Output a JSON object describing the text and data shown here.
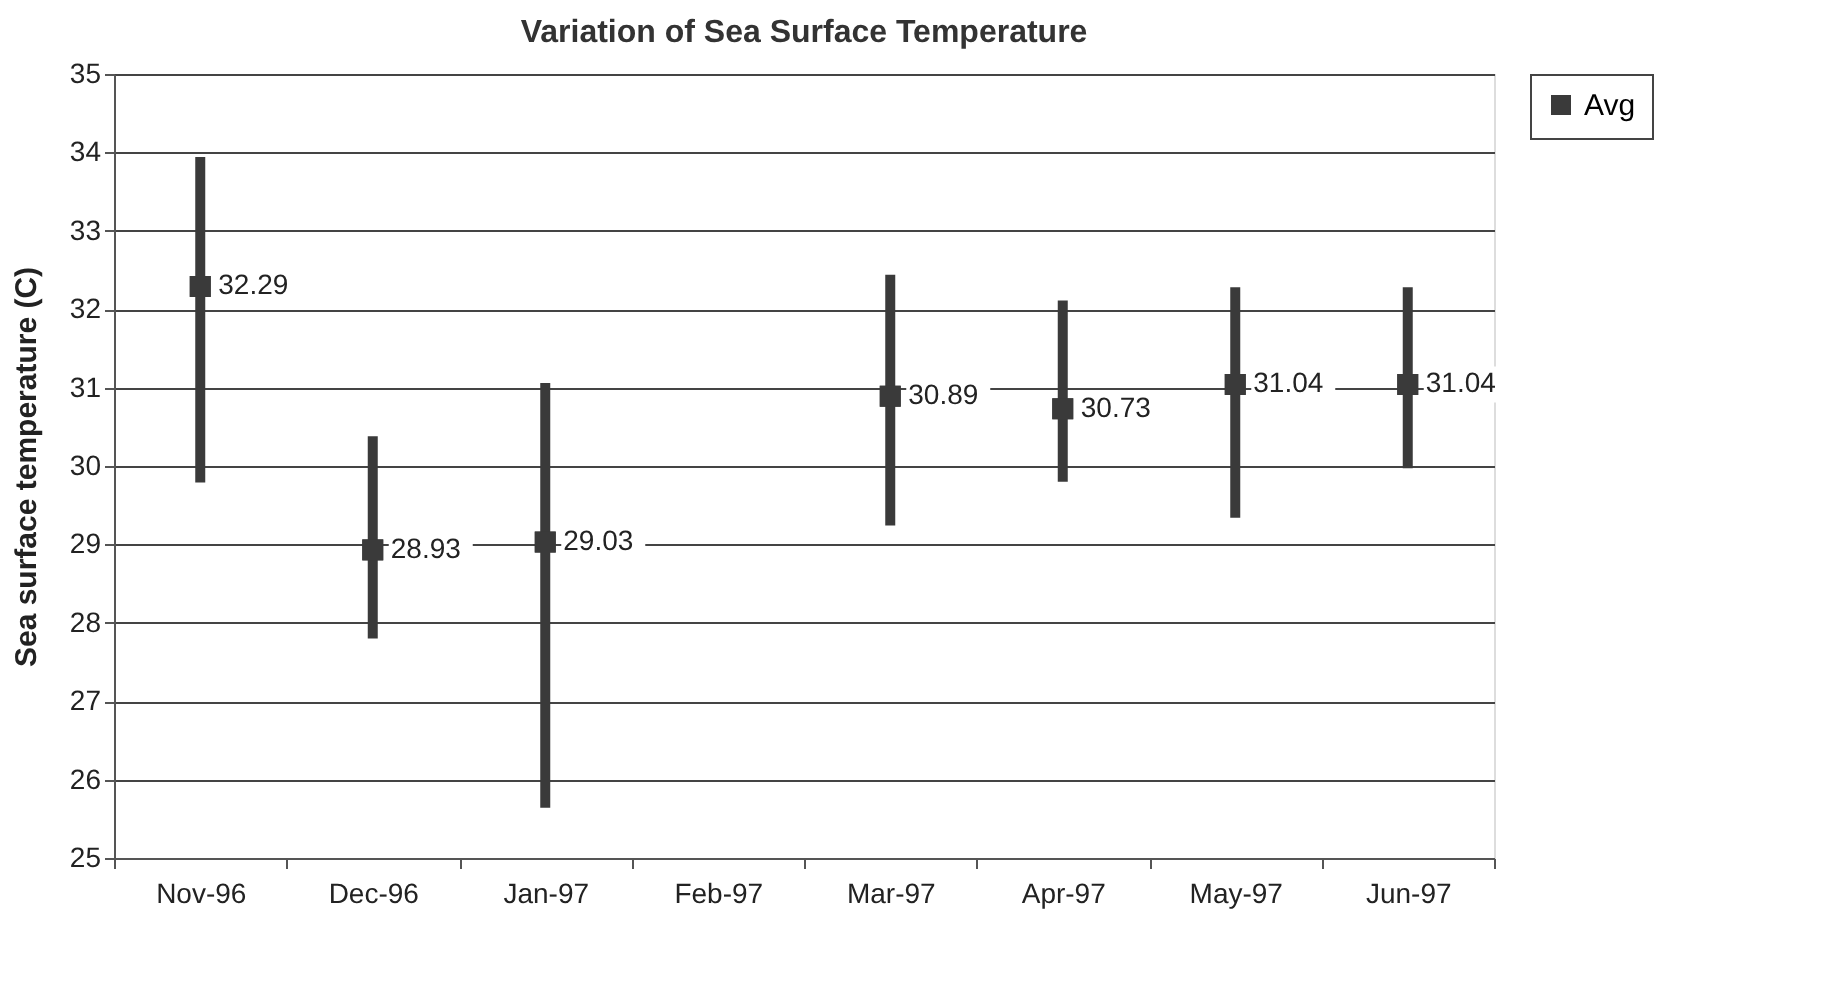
{
  "chart_data": {
    "type": "scatter",
    "title": "Variation of Sea Surface Temperature",
    "ylabel": "Sea surface temperature (C)",
    "categories": [
      "Nov-96",
      "Dec-96",
      "Jan-97",
      "Feb-97",
      "Mar-97",
      "Apr-97",
      "May-97",
      "Jun-97"
    ],
    "series": [
      {
        "name": "Avg",
        "color": "#3a3a3a",
        "values": [
          32.29,
          28.93,
          29.03,
          null,
          30.89,
          30.73,
          31.04,
          31.04
        ],
        "errors": [
          [
            29.79,
            33.94
          ],
          [
            27.8,
            30.38
          ],
          [
            25.64,
            31.06
          ],
          null,
          [
            29.24,
            32.44
          ],
          [
            29.8,
            32.11
          ],
          [
            29.34,
            32.28
          ],
          [
            29.97,
            32.28
          ]
        ]
      }
    ],
    "ylim": [
      25,
      35
    ],
    "yticks": [
      25,
      26,
      27,
      28,
      29,
      30,
      31,
      32,
      33,
      34,
      35
    ],
    "grid": "y",
    "legend": "right",
    "marker": "square",
    "data_labels": true
  }
}
